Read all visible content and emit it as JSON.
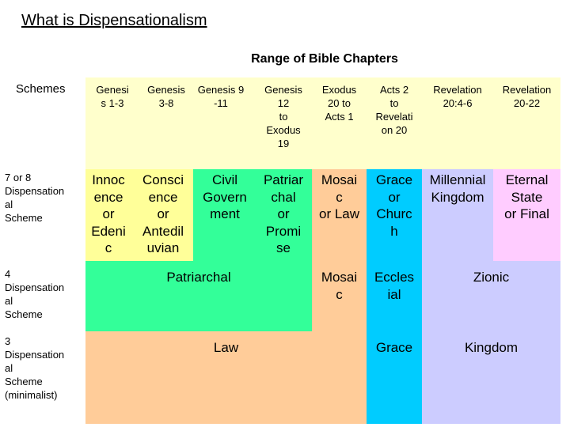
{
  "title": "What is Dispensationalism",
  "range_label": "Range of Bible Chapters",
  "colors": {
    "header_bg": "#FFFFCC",
    "innocence": "#FFFF99",
    "green": "#33FF99",
    "mosaic": "#FFCC99",
    "blue": "#00CCFF",
    "lavender": "#CCCCFF",
    "pink": "#FFCCFF"
  },
  "rows": {
    "schemes": "Schemes",
    "seven": [
      "7 or 8",
      "Dispensation",
      "al",
      "Scheme"
    ],
    "four": [
      "4",
      "Dispensation",
      "al",
      "Scheme"
    ],
    "three": [
      "3",
      "Dispensation",
      "al",
      "Scheme",
      "(minimalist)"
    ]
  },
  "headers": [
    [
      "Genesi",
      "s 1-3"
    ],
    [
      "Genesis",
      "3-8"
    ],
    [
      "Genesis 9",
      "-11"
    ],
    [
      "Genesis",
      "12",
      "to",
      "Exodus",
      "19"
    ],
    [
      "Exodus",
      "20 to",
      "Acts 1"
    ],
    [
      "Acts 2",
      "to",
      "Revelati",
      "on 20"
    ],
    [
      "Revelation",
      "20:4-6"
    ],
    [
      "Revelation",
      "20-22"
    ]
  ],
  "seven_scheme": [
    [
      "Innoc",
      "ence",
      "or",
      "Edeni",
      "c"
    ],
    [
      "Consci",
      "ence",
      "or",
      "Antedil",
      "uvian"
    ],
    [
      "Civil",
      "Govern",
      "ment"
    ],
    [
      "Patriar",
      "chal",
      "or",
      "Promi",
      "se"
    ],
    [
      "Mosai",
      "c",
      "or Law"
    ],
    [
      "Grace",
      "or",
      "Churc",
      "h"
    ],
    [
      "Millennial",
      "Kingdom"
    ],
    [
      "Eternal",
      "State",
      "or Final"
    ]
  ],
  "four_scheme": {
    "patriarchal": "Patriarchal",
    "mosaic": [
      "Mosai",
      "c"
    ],
    "ecclesial": [
      "Eccles",
      "ial"
    ],
    "zionic": "Zionic"
  },
  "three_scheme": {
    "law": "Law",
    "grace": "Grace",
    "kingdom": "Kingdom"
  }
}
